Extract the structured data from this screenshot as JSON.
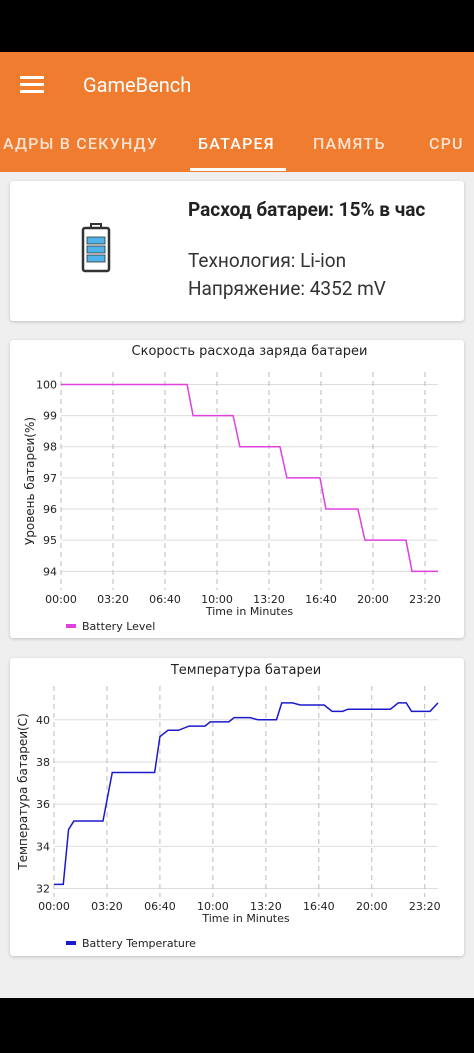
{
  "app": {
    "title": "GameBench"
  },
  "tabs": [
    "АДРЫ В СЕКУНДУ",
    "БАТАРЕЯ",
    "ПАМЯТЬ",
    "CPU"
  ],
  "summary": {
    "rate": "Расход батареи: 15% в час",
    "technology": "Технология: Li-ion",
    "voltage": "Напряжение: 4352 mV"
  },
  "chart_data": [
    {
      "type": "line",
      "title": "Скорость расхода заряда батареи",
      "x_label": "Time in Minutes",
      "y_label": "Уровень батареи(%)",
      "x": [
        0,
        485,
        508,
        662,
        688,
        842,
        869,
        996,
        1019,
        1142,
        1169,
        1327,
        1350,
        1450
      ],
      "series": [
        {
          "name": "Battery Level",
          "color": "#e040e0",
          "values": [
            100,
            100,
            99,
            99,
            98,
            98,
            97,
            97,
            96,
            96,
            95,
            95,
            94,
            94
          ]
        }
      ],
      "xlim": [
        0,
        1450
      ],
      "ylim": [
        93.4,
        100.4
      ],
      "xticks": [
        {
          "value": 0,
          "label": "00:00"
        },
        {
          "value": 200,
          "label": "03:20"
        },
        {
          "value": 400,
          "label": "06:40"
        },
        {
          "value": 600,
          "label": "10:00"
        },
        {
          "value": 800,
          "label": "13:20"
        },
        {
          "value": 1000,
          "label": "16:40"
        },
        {
          "value": 1200,
          "label": "20:00"
        },
        {
          "value": 1400,
          "label": "23:20"
        }
      ],
      "yticks": [
        94,
        95,
        96,
        97,
        98,
        99,
        100
      ],
      "grid": true
    },
    {
      "type": "line",
      "title": "Температура батареи",
      "x_label": "Time in Minutes",
      "y_label": "Температура батареи(C)",
      "x": [
        0,
        35,
        55,
        75,
        185,
        220,
        380,
        400,
        430,
        470,
        510,
        570,
        590,
        660,
        680,
        740,
        770,
        840,
        860,
        900,
        930,
        1020,
        1050,
        1090,
        1110,
        1270,
        1300,
        1330,
        1350,
        1420,
        1450
      ],
      "series": [
        {
          "name": "Battery Temperature",
          "color": "#1a1acc",
          "values": [
            32.2,
            32.2,
            34.8,
            35.2,
            35.2,
            37.5,
            37.5,
            39.2,
            39.5,
            39.5,
            39.7,
            39.7,
            39.9,
            39.9,
            40.1,
            40.1,
            40.0,
            40.0,
            40.8,
            40.8,
            40.7,
            40.7,
            40.4,
            40.4,
            40.5,
            40.5,
            40.8,
            40.8,
            40.4,
            40.4,
            40.8
          ]
        }
      ],
      "xlim": [
        0,
        1450
      ],
      "ylim": [
        31.6,
        41.6
      ],
      "xticks": [
        {
          "value": 0,
          "label": "00:00"
        },
        {
          "value": 200,
          "label": "03:20"
        },
        {
          "value": 400,
          "label": "06:40"
        },
        {
          "value": 600,
          "label": "10:00"
        },
        {
          "value": 800,
          "label": "13:20"
        },
        {
          "value": 1000,
          "label": "16:40"
        },
        {
          "value": 1200,
          "label": "20:00"
        },
        {
          "value": 1400,
          "label": "23:20"
        }
      ],
      "yticks": [
        32,
        34,
        36,
        38,
        40
      ],
      "grid": true
    }
  ]
}
